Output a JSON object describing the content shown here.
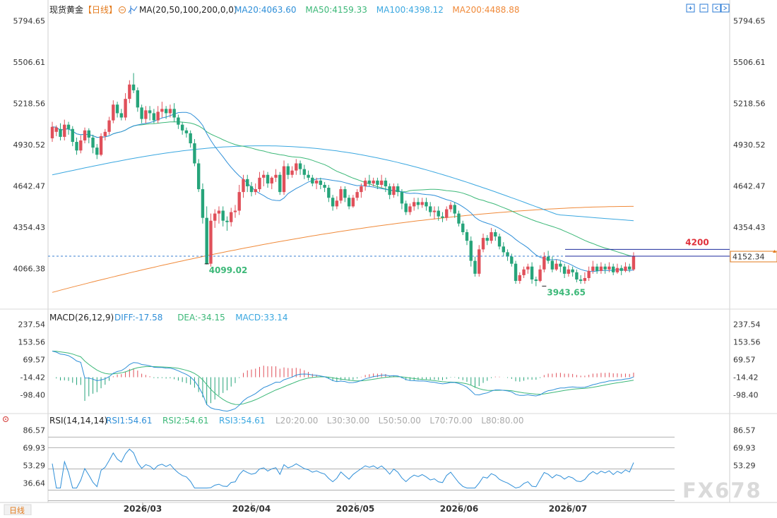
{
  "instrument": {
    "name": "现货黄金",
    "period_tag": "【日线】",
    "gear_icon": "settings-circle-icon"
  },
  "period_button": "日线",
  "watermark": "FX678",
  "price_pane": {
    "indicator": "MA(20,50,100,200,0,0)",
    "ma_legend": [
      {
        "text": "MA20:4063.60",
        "color": "#2f8fd8"
      },
      {
        "text": "MA50:4159.33",
        "color": "#3cb878"
      },
      {
        "text": "MA100:4398.12",
        "color": "#3aa7e0"
      },
      {
        "text": "MA200:4488.88",
        "color": "#f08a3a"
      }
    ],
    "y_ticks": [
      "5794.65",
      "5506.61",
      "5218.56",
      "4930.52",
      "4642.47",
      "4354.43",
      "4066.38"
    ],
    "annotations": {
      "high_level": "4200",
      "last_price": "4152.34",
      "low1": "4099.02",
      "low2": "3943.65"
    }
  },
  "macd_pane": {
    "title": "MACD(26,12,9)",
    "legend": [
      {
        "text": "DIFF:-17.58",
        "color": "#2f8fd8"
      },
      {
        "text": "DEA:-34.15",
        "color": "#3cb878"
      },
      {
        "text": "MACD:33.14",
        "color": "#3aa7e0"
      }
    ],
    "y_ticks": [
      "237.54",
      "153.56",
      "69.57",
      "-14.42",
      "-98.40"
    ]
  },
  "rsi_pane": {
    "title": "RSI(14,14,14)",
    "legend": [
      {
        "text": "RSI1:54.61",
        "color": "#2f8fd8"
      },
      {
        "text": "RSI2:54.61",
        "color": "#3cb878"
      },
      {
        "text": "RSI3:54.61",
        "color": "#3aa7e0"
      },
      {
        "text": "L20:20.00",
        "color": "#aaaaaa"
      },
      {
        "text": "L30:30.00",
        "color": "#aaaaaa"
      },
      {
        "text": "L50:50.00",
        "color": "#aaaaaa"
      },
      {
        "text": "L70:70.00",
        "color": "#aaaaaa"
      },
      {
        "text": "L80:80.00",
        "color": "#aaaaaa"
      }
    ],
    "y_ticks": [
      "86.57",
      "69.93",
      "53.29",
      "36.64"
    ]
  },
  "x_ticks": [
    "2026/03",
    "2026/04",
    "2026/05",
    "2026/06",
    "2026/07"
  ],
  "chart_data": [
    {
      "type": "candlestick",
      "title": "现货黄金【日线】",
      "x_ticks": [
        "2026/03",
        "2026/04",
        "2026/05",
        "2026/06",
        "2026/07"
      ],
      "ylim": [
        3850,
        5850
      ],
      "candles": [
        [
          4975,
          5055,
          5090,
          4950
        ],
        [
          5020,
          5050,
          5065,
          4990
        ],
        [
          5040,
          4985,
          5080,
          4960
        ],
        [
          4985,
          5070,
          5105,
          4960
        ],
        [
          5070,
          5040,
          5090,
          5000
        ],
        [
          5040,
          4950,
          5060,
          4920
        ],
        [
          4950,
          4890,
          4980,
          4860
        ],
        [
          4890,
          4960,
          4995,
          4870
        ],
        [
          4960,
          5030,
          5050,
          4940
        ],
        [
          5030,
          4980,
          5045,
          4940
        ],
        [
          4980,
          4910,
          5000,
          4870
        ],
        [
          4910,
          4860,
          4935,
          4830
        ],
        [
          4860,
          4990,
          5010,
          4850
        ],
        [
          4990,
          5020,
          5040,
          4960
        ],
        [
          5020,
          5100,
          5125,
          5000
        ],
        [
          5100,
          5210,
          5240,
          5080
        ],
        [
          5210,
          5150,
          5230,
          5120
        ],
        [
          5150,
          5120,
          5180,
          5100
        ],
        [
          5120,
          5250,
          5290,
          5100
        ],
        [
          5250,
          5350,
          5380,
          5220
        ],
        [
          5350,
          5310,
          5430,
          5290
        ],
        [
          5310,
          5190,
          5330,
          5160
        ],
        [
          5190,
          5110,
          5210,
          5080
        ],
        [
          5110,
          5170,
          5200,
          5080
        ],
        [
          5170,
          5150,
          5200,
          5100
        ],
        [
          5150,
          5100,
          5180,
          5080
        ],
        [
          5100,
          5160,
          5200,
          5080
        ],
        [
          5160,
          5180,
          5230,
          5120
        ],
        [
          5180,
          5150,
          5200,
          5110
        ],
        [
          5150,
          5180,
          5210,
          5120
        ],
        [
          5180,
          5120,
          5220,
          5090
        ],
        [
          5120,
          5070,
          5140,
          5040
        ],
        [
          5070,
          5030,
          5090,
          5000
        ],
        [
          5030,
          5010,
          5050,
          4980
        ],
        [
          5010,
          4940,
          5030,
          4910
        ],
        [
          4940,
          4800,
          4970,
          4780
        ],
        [
          4800,
          4620,
          4830,
          4600
        ],
        [
          4620,
          4420,
          4660,
          4380
        ],
        [
          4420,
          4100,
          4500,
          4095
        ],
        [
          4100,
          4400,
          4450,
          4080
        ],
        [
          4400,
          4450,
          4480,
          4350
        ],
        [
          4450,
          4470,
          4500,
          4380
        ],
        [
          4470,
          4400,
          4500,
          4360
        ],
        [
          4400,
          4390,
          4430,
          4330
        ],
        [
          4390,
          4460,
          4490,
          4360
        ],
        [
          4460,
          4470,
          4510,
          4420
        ],
        [
          4470,
          4600,
          4650,
          4440
        ],
        [
          4600,
          4690,
          4720,
          4560
        ],
        [
          4690,
          4640,
          4720,
          4600
        ],
        [
          4640,
          4600,
          4670,
          4570
        ],
        [
          4600,
          4620,
          4660,
          4580
        ],
        [
          4620,
          4700,
          4740,
          4600
        ],
        [
          4700,
          4720,
          4750,
          4640
        ],
        [
          4720,
          4660,
          4740,
          4630
        ],
        [
          4660,
          4700,
          4710,
          4620
        ],
        [
          4700,
          4720,
          4760,
          4670
        ],
        [
          4720,
          4600,
          4740,
          4580
        ],
        [
          4600,
          4780,
          4820,
          4580
        ],
        [
          4780,
          4720,
          4800,
          4690
        ],
        [
          4720,
          4750,
          4780,
          4700
        ],
        [
          4750,
          4800,
          4830,
          4720
        ],
        [
          4800,
          4760,
          4820,
          4720
        ],
        [
          4760,
          4720,
          4790,
          4690
        ],
        [
          4720,
          4700,
          4750,
          4680
        ],
        [
          4700,
          4660,
          4720,
          4640
        ],
        [
          4660,
          4680,
          4700,
          4620
        ],
        [
          4680,
          4650,
          4700,
          4620
        ],
        [
          4650,
          4630,
          4670,
          4600
        ],
        [
          4630,
          4560,
          4650,
          4530
        ],
        [
          4560,
          4500,
          4580,
          4470
        ],
        [
          4500,
          4540,
          4570,
          4480
        ],
        [
          4540,
          4620,
          4640,
          4520
        ],
        [
          4620,
          4560,
          4640,
          4530
        ],
        [
          4560,
          4500,
          4580,
          4480
        ],
        [
          4500,
          4560,
          4580,
          4490
        ],
        [
          4560,
          4600,
          4620,
          4540
        ],
        [
          4600,
          4640,
          4660,
          4560
        ],
        [
          4640,
          4680,
          4700,
          4610
        ],
        [
          4680,
          4660,
          4720,
          4640
        ],
        [
          4660,
          4680,
          4700,
          4640
        ],
        [
          4680,
          4650,
          4700,
          4620
        ],
        [
          4650,
          4680,
          4720,
          4630
        ],
        [
          4680,
          4640,
          4700,
          4600
        ],
        [
          4640,
          4580,
          4660,
          4550
        ],
        [
          4580,
          4640,
          4660,
          4560
        ],
        [
          4640,
          4600,
          4660,
          4570
        ],
        [
          4600,
          4520,
          4620,
          4480
        ],
        [
          4520,
          4460,
          4540,
          4440
        ],
        [
          4460,
          4500,
          4520,
          4440
        ],
        [
          4500,
          4530,
          4560,
          4470
        ],
        [
          4530,
          4510,
          4560,
          4480
        ],
        [
          4510,
          4530,
          4560,
          4490
        ],
        [
          4530,
          4500,
          4560,
          4470
        ],
        [
          4500,
          4460,
          4530,
          4430
        ],
        [
          4460,
          4470,
          4500,
          4410
        ],
        [
          4470,
          4430,
          4500,
          4400
        ],
        [
          4430,
          4420,
          4460,
          4390
        ],
        [
          4420,
          4480,
          4500,
          4400
        ],
        [
          4480,
          4510,
          4530,
          4460
        ],
        [
          4510,
          4450,
          4530,
          4420
        ],
        [
          4450,
          4380,
          4470,
          4360
        ],
        [
          4380,
          4320,
          4400,
          4300
        ],
        [
          4320,
          4260,
          4340,
          4230
        ],
        [
          4260,
          4120,
          4290,
          4080
        ],
        [
          4120,
          4030,
          4150,
          4010
        ],
        [
          4030,
          4200,
          4230,
          4010
        ],
        [
          4200,
          4280,
          4310,
          4180
        ],
        [
          4280,
          4260,
          4300,
          4230
        ],
        [
          4260,
          4320,
          4350,
          4240
        ],
        [
          4320,
          4290,
          4340,
          4260
        ],
        [
          4290,
          4220,
          4310,
          4200
        ],
        [
          4220,
          4180,
          4250,
          4150
        ],
        [
          4180,
          4150,
          4200,
          4120
        ],
        [
          4150,
          4100,
          4170,
          4080
        ],
        [
          4100,
          3980,
          4120,
          3960
        ],
        [
          3980,
          4020,
          4040,
          3960
        ],
        [
          4020,
          4060,
          4080,
          4000
        ],
        [
          4060,
          4080,
          4100,
          4030
        ],
        [
          4080,
          3990,
          4110,
          3960
        ],
        [
          3990,
          3980,
          4010,
          3943
        ],
        [
          3980,
          4060,
          4090,
          3970
        ],
        [
          4060,
          4150,
          4180,
          4040
        ],
        [
          4150,
          4120,
          4190,
          4100
        ],
        [
          4120,
          4060,
          4150,
          4040
        ],
        [
          4060,
          4100,
          4130,
          4050
        ],
        [
          4100,
          4080,
          4120,
          4040
        ],
        [
          4080,
          4030,
          4100,
          4000
        ],
        [
          4030,
          4060,
          4090,
          4010
        ],
        [
          4060,
          4040,
          4080,
          4010
        ],
        [
          4040,
          3990,
          4060,
          3970
        ],
        [
          3990,
          3980,
          4020,
          3960
        ],
        [
          3980,
          4000,
          4040,
          3960
        ],
        [
          4000,
          4050,
          4080,
          3980
        ],
        [
          4050,
          4080,
          4120,
          4030
        ],
        [
          4080,
          4050,
          4100,
          4030
        ],
        [
          4050,
          4080,
          4110,
          4030
        ],
        [
          4080,
          4060,
          4100,
          4030
        ],
        [
          4060,
          4080,
          4110,
          4040
        ],
        [
          4080,
          4040,
          4100,
          4020
        ],
        [
          4040,
          4070,
          4100,
          4030
        ],
        [
          4070,
          4050,
          4090,
          4020
        ],
        [
          4050,
          4080,
          4110,
          4040
        ],
        [
          4080,
          4060,
          4100,
          4040
        ],
        [
          4060,
          4152,
          4180,
          4050
        ]
      ]
    },
    {
      "type": "line",
      "title": "MACD(26,12,9)",
      "series_names": [
        "DIFF",
        "DEA",
        "MACD"
      ],
      "last_values": {
        "DIFF": -17.58,
        "DEA": -34.15,
        "MACD": 33.14
      },
      "ylim": [
        -140,
        260
      ]
    },
    {
      "type": "line",
      "title": "RSI(14,14,14)",
      "series_names": [
        "RSI1",
        "RSI2",
        "RSI3"
      ],
      "last_values": {
        "RSI1": 54.61,
        "RSI2": 54.61,
        "RSI3": 54.61
      },
      "levels": [
        20,
        30,
        50,
        70,
        80
      ],
      "ylim": [
        25,
        90
      ]
    }
  ]
}
